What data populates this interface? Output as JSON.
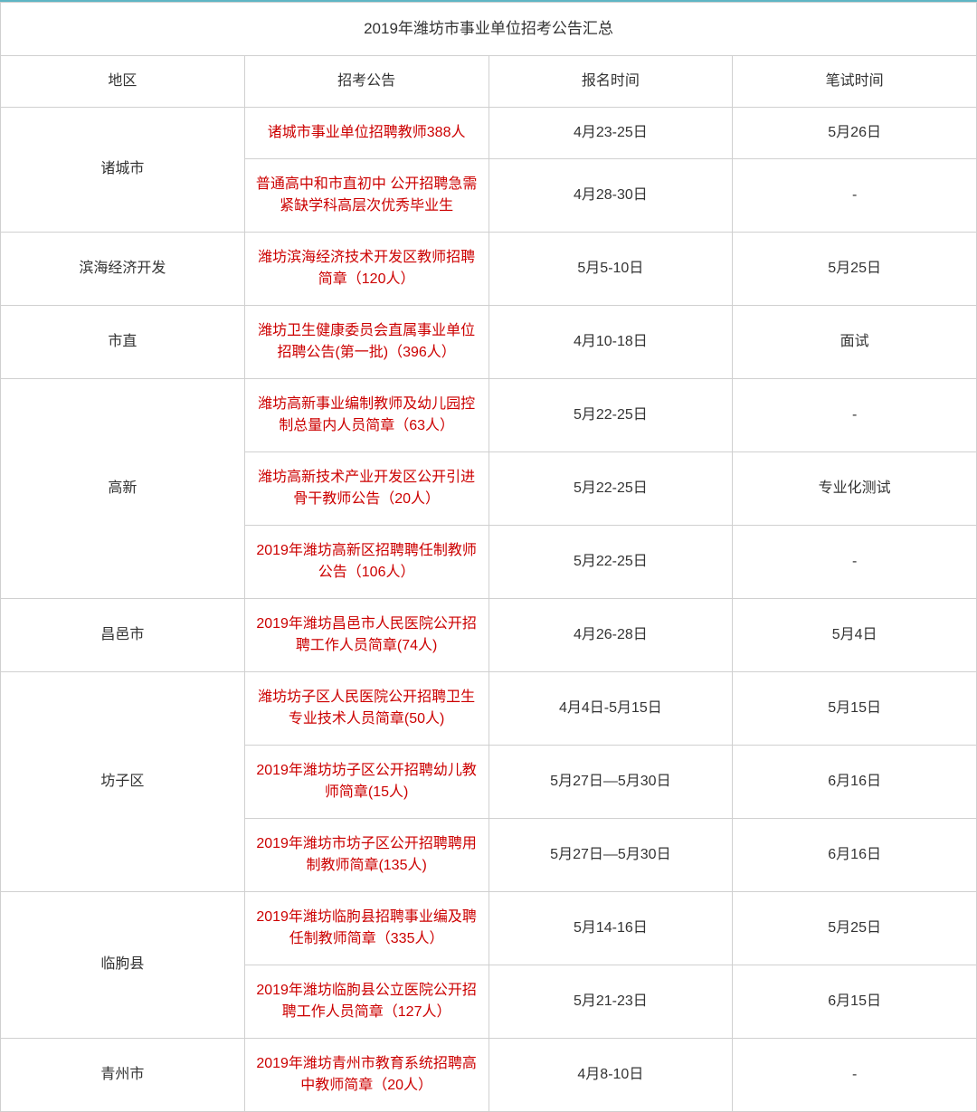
{
  "title": "2019年潍坊市事业单位招考公告汇总",
  "headers": {
    "region": "地区",
    "announcement": "招考公告",
    "signup_time": "报名时间",
    "exam_time": "笔试时间"
  },
  "colors": {
    "border_top": "#5eb5c4",
    "cell_border": "#d0d0d0",
    "text_normal": "#333333",
    "text_link": "#cc0000",
    "background": "#ffffff"
  },
  "typography": {
    "body_fontsize": 16,
    "title_fontsize": 17
  },
  "column_widths": {
    "region": 130,
    "announcement": 590,
    "signup": 190,
    "exam": 120
  },
  "regions": [
    {
      "name": "诸城市",
      "rows": [
        {
          "announcement": "诸城市事业单位招聘教师388人",
          "signup_time": "4月23-25日",
          "exam_time": "5月26日"
        },
        {
          "announcement": "普通高中和市直初中 公开招聘急需紧缺学科高层次优秀毕业生",
          "signup_time": "4月28-30日",
          "exam_time": "-"
        }
      ]
    },
    {
      "name": "滨海经济开发",
      "rows": [
        {
          "announcement": "潍坊滨海经济技术开发区教师招聘简章（120人）",
          "signup_time": "5月5-10日",
          "exam_time": "5月25日"
        }
      ]
    },
    {
      "name": "市直",
      "rows": [
        {
          "announcement": "潍坊卫生健康委员会直属事业单位招聘公告(第一批)（396人）",
          "signup_time": "4月10-18日",
          "exam_time": "面试"
        }
      ]
    },
    {
      "name": "高新",
      "rows": [
        {
          "announcement": "潍坊高新事业编制教师及幼儿园控制总量内人员简章（63人）",
          "signup_time": "5月22-25日",
          "exam_time": "-"
        },
        {
          "announcement": "潍坊高新技术产业开发区公开引进骨干教师公告（20人）",
          "signup_time": "5月22-25日",
          "exam_time": "专业化测试"
        },
        {
          "announcement": "2019年潍坊高新区招聘聘任制教师公告（106人）",
          "signup_time": "5月22-25日",
          "exam_time": "-"
        }
      ]
    },
    {
      "name": "昌邑市",
      "rows": [
        {
          "announcement": "2019年潍坊昌邑市人民医院公开招聘工作人员简章(74人)",
          "signup_time": "4月26-28日",
          "exam_time": "5月4日"
        }
      ]
    },
    {
      "name": "坊子区",
      "rows": [
        {
          "announcement": "潍坊坊子区人民医院公开招聘卫生专业技术人员简章(50人)",
          "signup_time": "4月4日-5月15日",
          "exam_time": "5月15日"
        },
        {
          "announcement": "2019年潍坊坊子区公开招聘幼儿教师简章(15人)",
          "signup_time": "5月27日—5月30日",
          "exam_time": "6月16日"
        },
        {
          "announcement": "2019年潍坊市坊子区公开招聘聘用制教师简章(135人)",
          "signup_time": "5月27日—5月30日",
          "exam_time": "6月16日"
        }
      ]
    },
    {
      "name": "临朐县",
      "rows": [
        {
          "announcement": "2019年潍坊临朐县招聘事业编及聘任制教师简章（335人）",
          "signup_time": "5月14-16日",
          "exam_time": "5月25日"
        },
        {
          "announcement": "2019年潍坊临朐县公立医院公开招聘工作人员简章（127人）",
          "signup_time": "5月21-23日",
          "exam_time": "6月15日"
        }
      ]
    },
    {
      "name": "青州市",
      "rows": [
        {
          "announcement": "2019年潍坊青州市教育系统招聘高中教师简章（20人）",
          "signup_time": "4月8-10日",
          "exam_time": "-"
        }
      ]
    }
  ]
}
